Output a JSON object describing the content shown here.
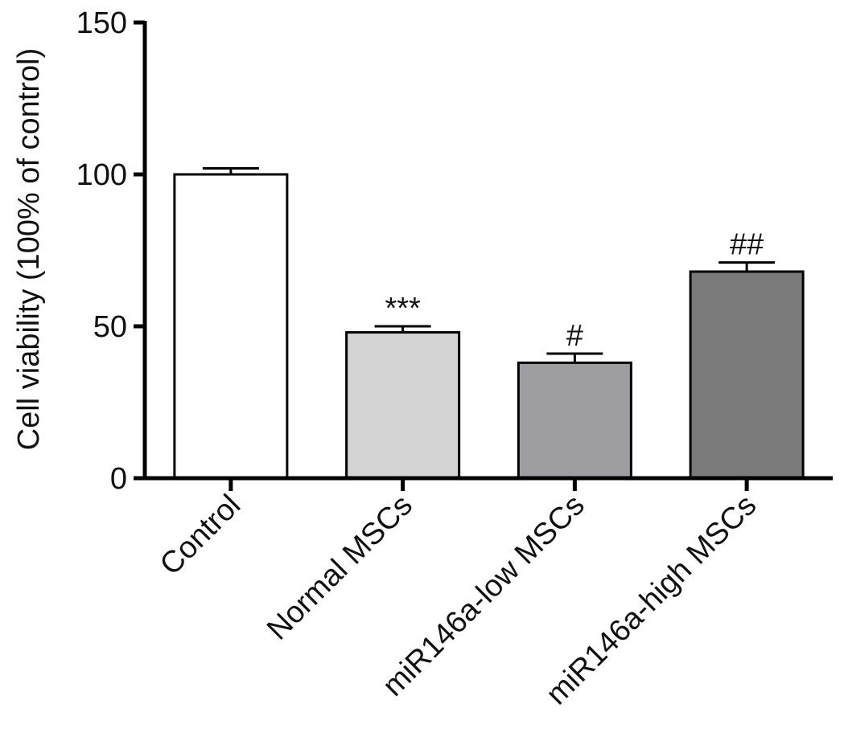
{
  "chart_data": {
    "type": "bar",
    "title": "",
    "xlabel": "",
    "ylabel": "Cell viability (100% of control)",
    "ylim": [
      0,
      150
    ],
    "yticks": [
      0,
      50,
      100,
      150
    ],
    "grid": false,
    "categories": [
      "Control",
      "Normal MSCs",
      "miR146a-low MSCs",
      "miR146a-high MSCs"
    ],
    "values": [
      100,
      48,
      38,
      68
    ],
    "errors": [
      2,
      2,
      3,
      3
    ],
    "annotations": [
      "",
      "***",
      "#",
      "##"
    ],
    "colors": [
      "#ffffff",
      "#d4d4d4",
      "#9d9da2",
      "#7a7a7a"
    ]
  }
}
